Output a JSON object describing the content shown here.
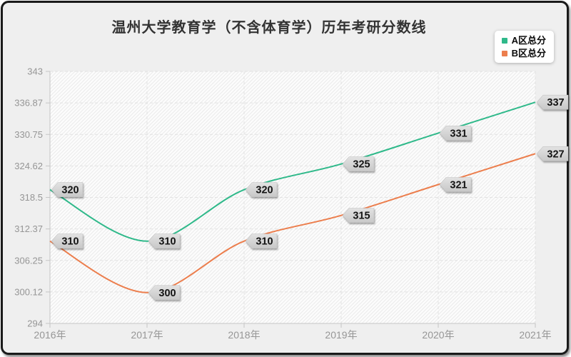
{
  "title": "温州大学教育学（不含体育学）历年考研分数线",
  "legend": {
    "position": "top-right",
    "items": [
      {
        "label": "A区总分",
        "color": "#2fb98a"
      },
      {
        "label": "B区总分",
        "color": "#ec7e4d"
      }
    ]
  },
  "chart_data": {
    "type": "line",
    "title": "温州大学教育学（不含体育学）历年考研分数线",
    "categories": [
      "2016年",
      "2017年",
      "2018年",
      "2019年",
      "2020年",
      "2021年"
    ],
    "series": [
      {
        "name": "A区总分",
        "color": "#2fb98a",
        "values": [
          320,
          310,
          320,
          325,
          331,
          337
        ]
      },
      {
        "name": "B区总分",
        "color": "#ec7e4d",
        "values": [
          310,
          300,
          310,
          315,
          321,
          327
        ]
      }
    ],
    "ylim": [
      294,
      343
    ],
    "yticks": [
      294,
      300.12,
      306.25,
      312.37,
      318.5,
      324.62,
      330.75,
      336.87,
      343
    ],
    "ytick_labels": [
      "294",
      "300.12",
      "306.25",
      "312.37",
      "318.5",
      "324.62",
      "330.75",
      "336.87",
      "343"
    ],
    "xlabel": "",
    "ylabel": "",
    "grid": "dashed",
    "smooth": true,
    "point_labels": true,
    "legend_position": "top-right"
  },
  "colors": {
    "frame_bg": "#efefef",
    "frame_border": "#1a1a1a",
    "plot_bg": "#fcfcfc",
    "hatch_line": "#ebebeb",
    "gridline": "#e2e2e2",
    "axis": "#c6c6c6",
    "tick_text": "#969696",
    "title_text": "#333333",
    "tag_bg_top": "#e2e2e2",
    "tag_bg_bottom": "#c8c8c8",
    "tag_text": "#141414"
  }
}
